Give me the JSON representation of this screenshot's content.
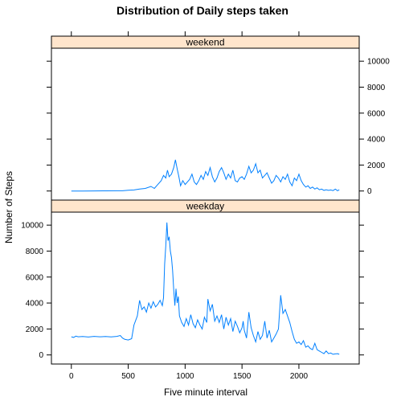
{
  "chart_data": {
    "type": "line",
    "title": "Distribution of Daily steps taken",
    "xlabel": "Five minute interval",
    "ylabel": "Number of Steps",
    "xlim": [
      -175,
      2530
    ],
    "ylim": [
      -700,
      11000
    ],
    "x_ticks": [
      0,
      500,
      1000,
      1500,
      2000
    ],
    "y_ticks": [
      0,
      2000,
      4000,
      6000,
      8000,
      10000
    ],
    "grid": false,
    "layout": "two stacked panels, shared x axis",
    "strip_color": "#ffe5cc",
    "line_color": "#0080ff",
    "panels": [
      {
        "name": "weekend",
        "points": [
          [
            0,
            0
          ],
          [
            100,
            0
          ],
          [
            200,
            5
          ],
          [
            300,
            10
          ],
          [
            400,
            20
          ],
          [
            450,
            15
          ],
          [
            500,
            60
          ],
          [
            550,
            80
          ],
          [
            600,
            150
          ],
          [
            650,
            200
          ],
          [
            700,
            350
          ],
          [
            730,
            200
          ],
          [
            760,
            500
          ],
          [
            790,
            800
          ],
          [
            810,
            1200
          ],
          [
            830,
            1000
          ],
          [
            845,
            1600
          ],
          [
            860,
            1100
          ],
          [
            880,
            1300
          ],
          [
            900,
            1800
          ],
          [
            915,
            2400
          ],
          [
            930,
            1700
          ],
          [
            945,
            1100
          ],
          [
            960,
            400
          ],
          [
            980,
            800
          ],
          [
            1000,
            500
          ],
          [
            1020,
            700
          ],
          [
            1040,
            900
          ],
          [
            1060,
            1300
          ],
          [
            1080,
            700
          ],
          [
            1100,
            500
          ],
          [
            1120,
            800
          ],
          [
            1140,
            1200
          ],
          [
            1160,
            900
          ],
          [
            1180,
            1500
          ],
          [
            1200,
            1200
          ],
          [
            1220,
            1800
          ],
          [
            1240,
            1100
          ],
          [
            1260,
            700
          ],
          [
            1280,
            1000
          ],
          [
            1300,
            1500
          ],
          [
            1320,
            1800
          ],
          [
            1340,
            1400
          ],
          [
            1360,
            900
          ],
          [
            1380,
            1300
          ],
          [
            1400,
            1000
          ],
          [
            1420,
            1600
          ],
          [
            1440,
            800
          ],
          [
            1460,
            700
          ],
          [
            1480,
            1000
          ],
          [
            1500,
            1100
          ],
          [
            1520,
            900
          ],
          [
            1540,
            1300
          ],
          [
            1560,
            1900
          ],
          [
            1580,
            1400
          ],
          [
            1600,
            1600
          ],
          [
            1620,
            2100
          ],
          [
            1640,
            1400
          ],
          [
            1660,
            1600
          ],
          [
            1680,
            1000
          ],
          [
            1700,
            1200
          ],
          [
            1720,
            1400
          ],
          [
            1740,
            1000
          ],
          [
            1760,
            600
          ],
          [
            1780,
            800
          ],
          [
            1800,
            1200
          ],
          [
            1820,
            1000
          ],
          [
            1840,
            700
          ],
          [
            1860,
            1100
          ],
          [
            1880,
            900
          ],
          [
            1900,
            1300
          ],
          [
            1920,
            700
          ],
          [
            1940,
            400
          ],
          [
            1960,
            1000
          ],
          [
            1980,
            800
          ],
          [
            2000,
            1300
          ],
          [
            2020,
            800
          ],
          [
            2040,
            500
          ],
          [
            2060,
            300
          ],
          [
            2080,
            400
          ],
          [
            2100,
            200
          ],
          [
            2120,
            300
          ],
          [
            2140,
            150
          ],
          [
            2160,
            250
          ],
          [
            2180,
            100
          ],
          [
            2200,
            150
          ],
          [
            2220,
            50
          ],
          [
            2240,
            100
          ],
          [
            2260,
            50
          ],
          [
            2280,
            80
          ],
          [
            2300,
            30
          ],
          [
            2320,
            150
          ],
          [
            2340,
            20
          ],
          [
            2355,
            100
          ]
        ]
      },
      {
        "name": "weekday",
        "points": [
          [
            0,
            1400
          ],
          [
            20,
            1350
          ],
          [
            40,
            1450
          ],
          [
            60,
            1400
          ],
          [
            100,
            1420
          ],
          [
            150,
            1380
          ],
          [
            200,
            1430
          ],
          [
            250,
            1400
          ],
          [
            300,
            1420
          ],
          [
            350,
            1390
          ],
          [
            400,
            1430
          ],
          [
            430,
            1500
          ],
          [
            450,
            1300
          ],
          [
            470,
            1200
          ],
          [
            500,
            1150
          ],
          [
            530,
            1250
          ],
          [
            550,
            2300
          ],
          [
            580,
            3000
          ],
          [
            600,
            4200
          ],
          [
            620,
            3500
          ],
          [
            640,
            3700
          ],
          [
            660,
            3300
          ],
          [
            680,
            4000
          ],
          [
            700,
            3600
          ],
          [
            720,
            4100
          ],
          [
            740,
            3700
          ],
          [
            760,
            3900
          ],
          [
            780,
            4200
          ],
          [
            800,
            3800
          ],
          [
            810,
            4400
          ],
          [
            820,
            7000
          ],
          [
            830,
            8400
          ],
          [
            840,
            10200
          ],
          [
            850,
            8800
          ],
          [
            860,
            9100
          ],
          [
            870,
            8000
          ],
          [
            880,
            7500
          ],
          [
            890,
            6500
          ],
          [
            900,
            5000
          ],
          [
            910,
            3800
          ],
          [
            920,
            5100
          ],
          [
            930,
            4000
          ],
          [
            940,
            4500
          ],
          [
            950,
            3000
          ],
          [
            970,
            2500
          ],
          [
            990,
            2200
          ],
          [
            1010,
            2800
          ],
          [
            1030,
            2300
          ],
          [
            1050,
            3100
          ],
          [
            1070,
            2400
          ],
          [
            1090,
            2100
          ],
          [
            1110,
            2700
          ],
          [
            1130,
            2300
          ],
          [
            1150,
            2000
          ],
          [
            1170,
            2900
          ],
          [
            1190,
            2500
          ],
          [
            1200,
            4300
          ],
          [
            1220,
            3400
          ],
          [
            1240,
            3900
          ],
          [
            1260,
            2600
          ],
          [
            1280,
            3000
          ],
          [
            1300,
            2500
          ],
          [
            1320,
            3100
          ],
          [
            1340,
            2000
          ],
          [
            1360,
            2900
          ],
          [
            1380,
            2300
          ],
          [
            1400,
            2800
          ],
          [
            1420,
            1800
          ],
          [
            1440,
            2600
          ],
          [
            1460,
            2200
          ],
          [
            1480,
            1700
          ],
          [
            1500,
            2100
          ],
          [
            1510,
            2600
          ],
          [
            1520,
            1900
          ],
          [
            1540,
            1300
          ],
          [
            1560,
            3300
          ],
          [
            1580,
            2100
          ],
          [
            1600,
            1500
          ],
          [
            1620,
            1000
          ],
          [
            1640,
            1800
          ],
          [
            1660,
            1200
          ],
          [
            1680,
            1500
          ],
          [
            1700,
            2600
          ],
          [
            1720,
            1300
          ],
          [
            1740,
            1900
          ],
          [
            1760,
            1000
          ],
          [
            1780,
            1300
          ],
          [
            1800,
            1600
          ],
          [
            1820,
            2000
          ],
          [
            1840,
            4600
          ],
          [
            1850,
            3900
          ],
          [
            1860,
            3200
          ],
          [
            1880,
            3500
          ],
          [
            1900,
            3000
          ],
          [
            1920,
            2500
          ],
          [
            1940,
            1800
          ],
          [
            1960,
            1200
          ],
          [
            1980,
            900
          ],
          [
            2000,
            1000
          ],
          [
            2020,
            800
          ],
          [
            2040,
            1100
          ],
          [
            2060,
            600
          ],
          [
            2080,
            700
          ],
          [
            2100,
            500
          ],
          [
            2120,
            400
          ],
          [
            2140,
            900
          ],
          [
            2160,
            400
          ],
          [
            2180,
            300
          ],
          [
            2200,
            200
          ],
          [
            2220,
            100
          ],
          [
            2240,
            300
          ],
          [
            2260,
            100
          ],
          [
            2280,
            150
          ],
          [
            2300,
            50
          ],
          [
            2320,
            80
          ],
          [
            2340,
            100
          ],
          [
            2355,
            50
          ]
        ]
      }
    ]
  }
}
